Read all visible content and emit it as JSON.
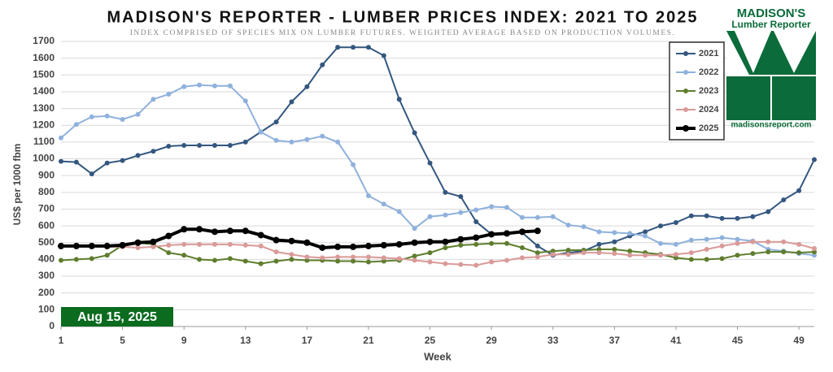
{
  "chart_data": {
    "type": "line",
    "title": "MADISON'S REPORTER - LUMBER PRICES INDEX: 2021 TO 2025",
    "subtitle": "INDEX COMPRISED OF SPECIES MIX ON LUMBER FUTURES. WEIGHTED AVERAGE BASED ON PRODUCTION VOLUMES.",
    "y_label": "US$ per 1000 fbm",
    "x_label": "Week",
    "date_label": "Aug 15, 2025",
    "logo_title": "MADISON'S",
    "logo_subtitle": "Lumber Reporter",
    "logo_url": "madisonsreport.com",
    "x": [
      1,
      2,
      3,
      4,
      5,
      6,
      7,
      8,
      9,
      10,
      11,
      12,
      13,
      14,
      15,
      16,
      17,
      18,
      19,
      20,
      21,
      22,
      23,
      24,
      25,
      26,
      27,
      28,
      29,
      30,
      31,
      32,
      33,
      34,
      35,
      36,
      37,
      38,
      39,
      40,
      41,
      42,
      43,
      44,
      45,
      46,
      47,
      48,
      49,
      50
    ],
    "xlim": [
      1,
      50
    ],
    "xticks": [
      1,
      5,
      9,
      13,
      17,
      21,
      25,
      29,
      33,
      37,
      41,
      45,
      49
    ],
    "ylim": [
      0,
      1700
    ],
    "yticks": [
      0,
      100,
      200,
      300,
      400,
      500,
      600,
      700,
      800,
      900,
      1000,
      1100,
      1200,
      1300,
      1400,
      1500,
      1600,
      1700
    ],
    "grid": true,
    "legend": "top-right",
    "series": [
      {
        "name": "2021",
        "color": "#34577f",
        "values": [
          985,
          980,
          910,
          975,
          990,
          1020,
          1045,
          1075,
          1080,
          1080,
          1080,
          1080,
          1100,
          1160,
          1220,
          1340,
          1430,
          1560,
          1665,
          1665,
          1665,
          1615,
          1355,
          1155,
          975,
          800,
          775,
          625,
          550,
          560,
          560,
          480,
          425,
          440,
          450,
          490,
          505,
          540,
          565,
          600,
          620,
          660,
          660,
          645,
          645,
          655,
          685,
          755,
          810,
          995
        ]
      },
      {
        "name": "2022",
        "color": "#8fb1dc",
        "values": [
          1125,
          1205,
          1250,
          1255,
          1235,
          1265,
          1355,
          1385,
          1430,
          1440,
          1435,
          1435,
          1345,
          1160,
          1110,
          1100,
          1115,
          1135,
          1100,
          965,
          780,
          730,
          685,
          585,
          655,
          665,
          680,
          695,
          715,
          710,
          650,
          650,
          655,
          605,
          595,
          565,
          560,
          555,
          540,
          495,
          490,
          515,
          520,
          530,
          520,
          510,
          460,
          450,
          435,
          425
        ]
      },
      {
        "name": "2023",
        "color": "#5f7d2e",
        "values": [
          395,
          400,
          405,
          425,
          485,
          500,
          490,
          440,
          425,
          400,
          395,
          405,
          390,
          375,
          390,
          400,
          395,
          395,
          390,
          390,
          385,
          390,
          395,
          420,
          440,
          470,
          485,
          490,
          495,
          495,
          470,
          440,
          450,
          455,
          455,
          460,
          460,
          450,
          440,
          430,
          410,
          400,
          400,
          405,
          425,
          435,
          445,
          445,
          440,
          445
        ]
      },
      {
        "name": "2024",
        "color": "#d99a98",
        "values": [
          480,
          480,
          480,
          475,
          475,
          470,
          475,
          485,
          490,
          490,
          490,
          490,
          485,
          480,
          445,
          430,
          415,
          410,
          415,
          415,
          415,
          410,
          405,
          395,
          385,
          375,
          370,
          365,
          385,
          395,
          410,
          415,
          430,
          430,
          440,
          440,
          435,
          425,
          425,
          425,
          430,
          440,
          460,
          480,
          495,
          505,
          505,
          505,
          490,
          465
        ]
      },
      {
        "name": "2025",
        "color": "#000000",
        "values": [
          480,
          480,
          480,
          480,
          485,
          500,
          505,
          540,
          580,
          580,
          565,
          570,
          570,
          545,
          515,
          510,
          500,
          470,
          475,
          475,
          480,
          485,
          490,
          500,
          505,
          505,
          520,
          530,
          550,
          555,
          565,
          570,
          null,
          null,
          null,
          null,
          null,
          null,
          null,
          null,
          null,
          null,
          null,
          null,
          null,
          null,
          null,
          null,
          null,
          null
        ]
      }
    ]
  }
}
